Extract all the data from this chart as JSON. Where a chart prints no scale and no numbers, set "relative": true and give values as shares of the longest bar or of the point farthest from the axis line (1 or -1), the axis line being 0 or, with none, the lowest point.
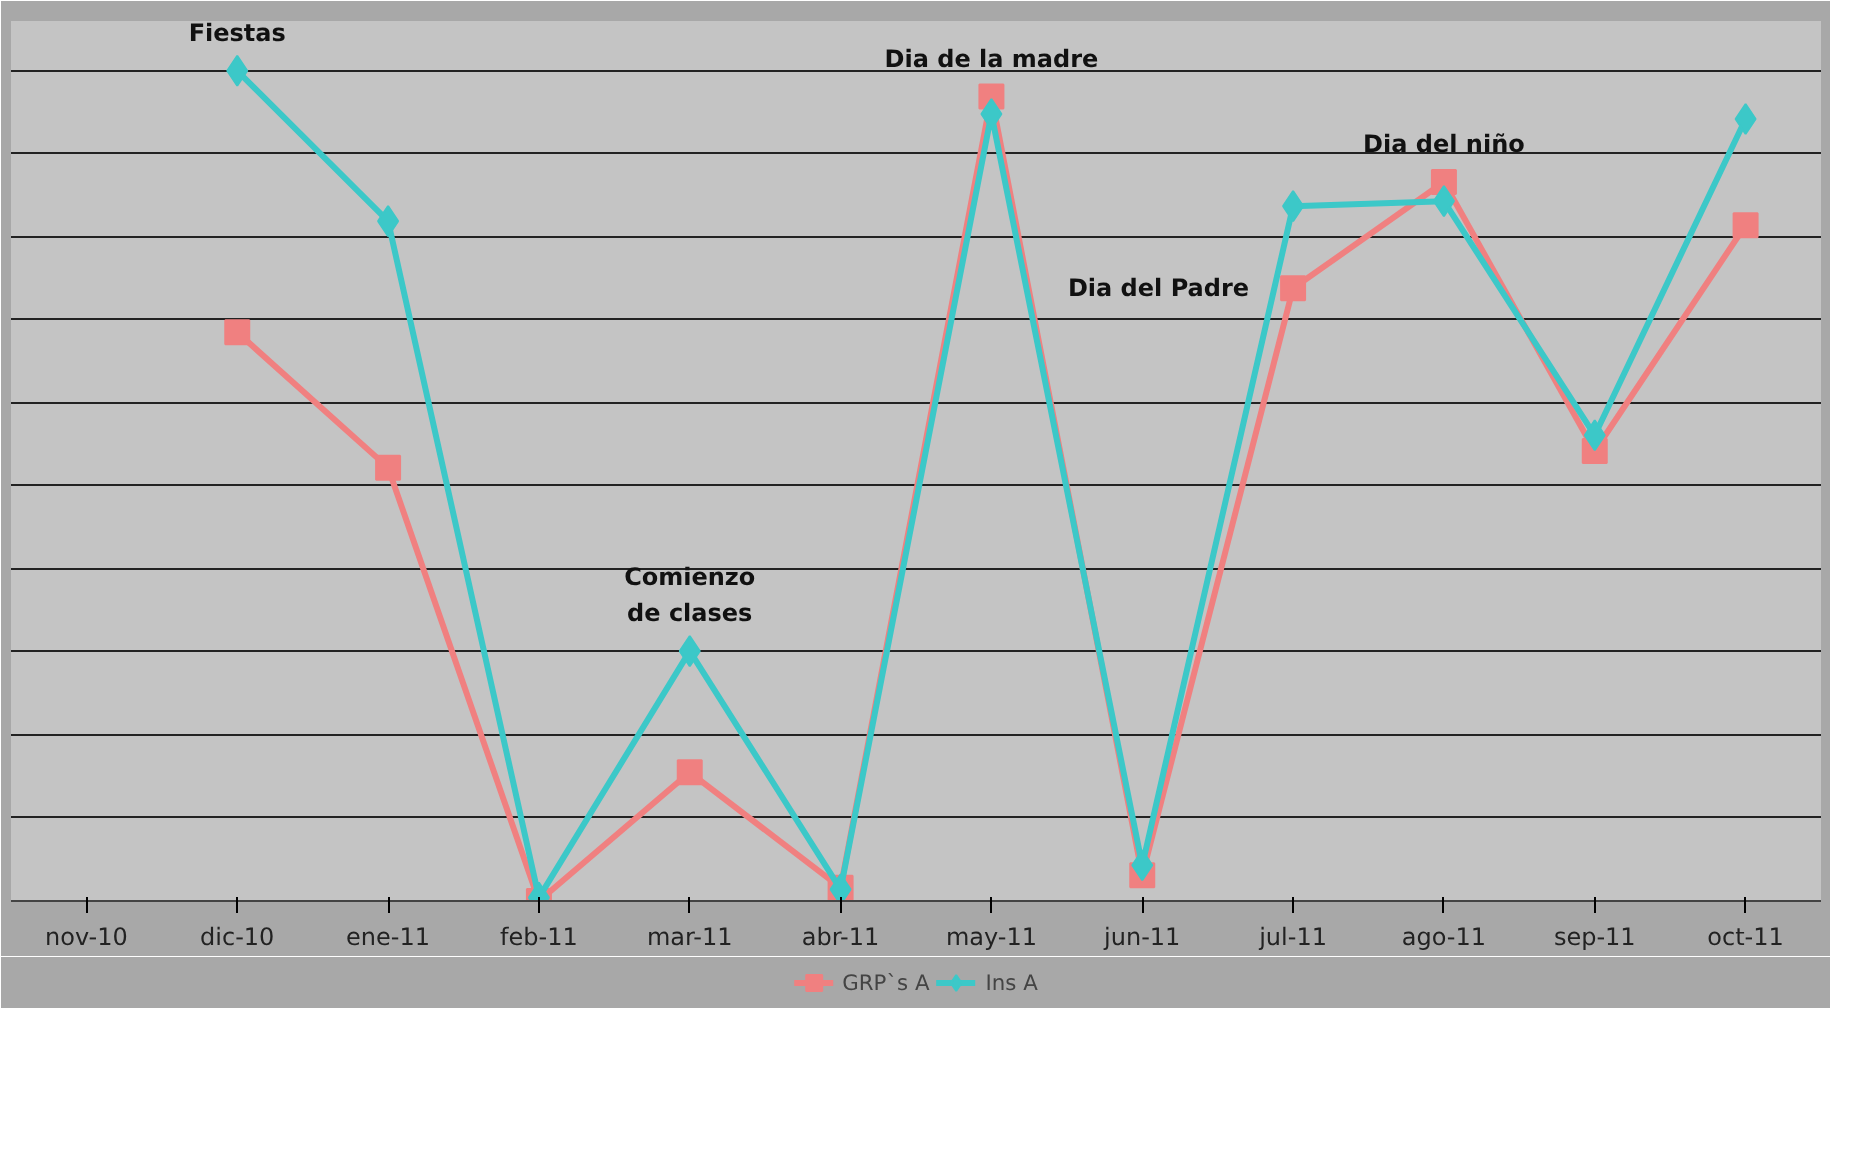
{
  "chart_data": {
    "type": "line",
    "relative": true,
    "grid": "y",
    "legend": "bottom",
    "line_style": "solid",
    "categories": [
      "nov-10",
      "dic-10",
      "ene-11",
      "feb-11",
      "mar-11",
      "abr-11",
      "may-11",
      "jun-11",
      "jul-11",
      "ago-11",
      "sep-11",
      "oct-11"
    ],
    "series": [
      {
        "name": "GRP`s A",
        "color": "#f08080",
        "marker": "square",
        "values": [
          null,
          0.685,
          0.522,
          0.0,
          0.155,
          0.016,
          0.969,
          0.031,
          0.738,
          0.866,
          0.542,
          0.814
        ]
      },
      {
        "name": "Ins A",
        "color": "#3cc8c8",
        "marker": "diamond",
        "values": [
          null,
          1.0,
          0.819,
          0.004,
          0.301,
          0.014,
          0.948,
          0.043,
          0.837,
          0.843,
          0.561,
          0.942
        ]
      }
    ],
    "annotations": [
      {
        "text": "Fiestas",
        "x": "dic-10",
        "y": 1.0
      },
      {
        "text": "Dia de la madre",
        "x": "may-11",
        "y": 0.969
      },
      {
        "text": "Comienzo\nde clases",
        "x": "mar-11",
        "y": 0.301
      },
      {
        "text": "Dia del Padre",
        "x": "jul-11",
        "y": 0.738
      },
      {
        "text": "Dia del niño",
        "x": "ago-11",
        "y": 0.866
      }
    ]
  }
}
